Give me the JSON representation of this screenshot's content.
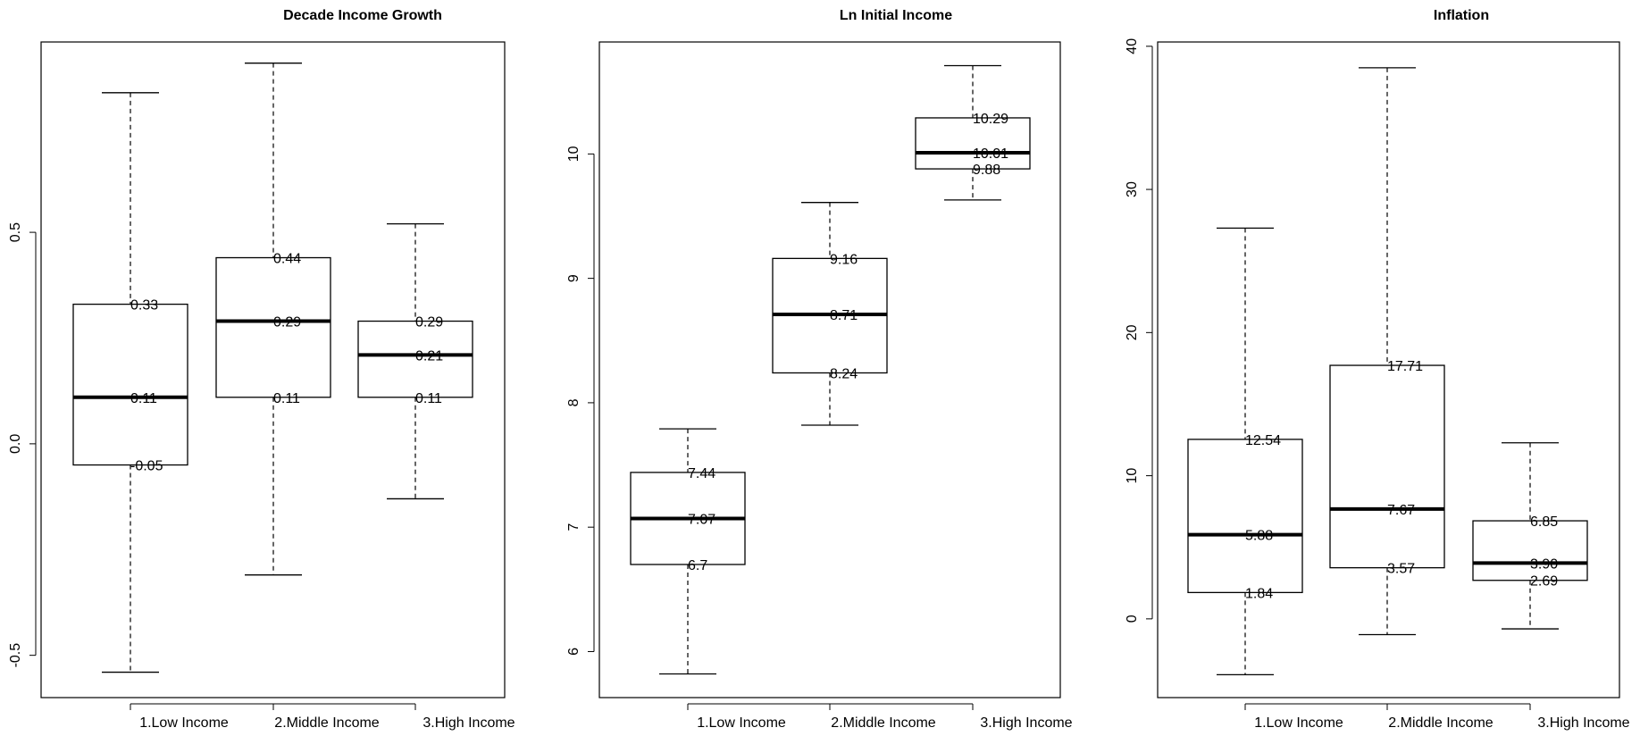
{
  "chart_data": [
    {
      "type": "box",
      "title": "Decade Income Growth",
      "categories": [
        "1.Low Income",
        "2.Middle Income",
        "3.High Income"
      ],
      "boxes": [
        {
          "min": -0.54,
          "q1": -0.05,
          "median": 0.11,
          "q3": 0.33,
          "max": 0.83,
          "labels": [
            "0.33",
            "0.11",
            "-0.05"
          ]
        },
        {
          "min": -0.31,
          "q1": 0.11,
          "median": 0.29,
          "q3": 0.44,
          "max": 0.9,
          "labels": [
            "0.44",
            "0.29",
            "0.11"
          ]
        },
        {
          "min": -0.13,
          "q1": 0.11,
          "median": 0.21,
          "q3": 0.29,
          "max": 0.52,
          "labels": [
            "0.29",
            "0.21",
            "0.11"
          ]
        }
      ],
      "yticks": [
        "-0.5",
        "0.0",
        "0.5"
      ],
      "ylim": [
        -0.6,
        0.95
      ]
    },
    {
      "type": "box",
      "title": "Ln Initial Income",
      "categories": [
        "1.Low Income",
        "2.Middle Income",
        "3.High Income"
      ],
      "boxes": [
        {
          "min": 5.82,
          "q1": 6.7,
          "median": 7.07,
          "q3": 7.44,
          "max": 7.79,
          "labels": [
            "7.44",
            "7.07",
            "6.7"
          ]
        },
        {
          "min": 7.82,
          "q1": 8.24,
          "median": 8.71,
          "q3": 9.16,
          "max": 9.61,
          "labels": [
            "9.16",
            "8.71",
            "8.24"
          ]
        },
        {
          "min": 9.63,
          "q1": 9.88,
          "median": 10.01,
          "q3": 10.29,
          "max": 10.71,
          "labels": [
            "10.29",
            "10.01",
            "9.88"
          ]
        }
      ],
      "yticks": [
        "6",
        "7",
        "8",
        "9",
        "10"
      ],
      "ylim": [
        5.63,
        10.9
      ]
    },
    {
      "type": "box",
      "title": "Inflation",
      "categories": [
        "1.Low Income",
        "2.Middle Income",
        "3.High Income"
      ],
      "boxes": [
        {
          "min": -3.9,
          "q1": 1.84,
          "median": 5.88,
          "q3": 12.54,
          "max": 27.3,
          "labels": [
            "12.54",
            "5.88",
            "1.84"
          ]
        },
        {
          "min": -1.1,
          "q1": 3.57,
          "median": 7.67,
          "q3": 17.71,
          "max": 38.5,
          "labels": [
            "17.71",
            "7.67",
            "3.57"
          ]
        },
        {
          "min": -0.7,
          "q1": 2.69,
          "median": 3.9,
          "q3": 6.85,
          "max": 12.3,
          "labels": [
            "6.85",
            "3.90",
            "2.69"
          ]
        }
      ],
      "yticks": [
        "0",
        "10",
        "20",
        "30",
        "40"
      ],
      "ylim": [
        -5.5,
        40.3
      ]
    }
  ]
}
